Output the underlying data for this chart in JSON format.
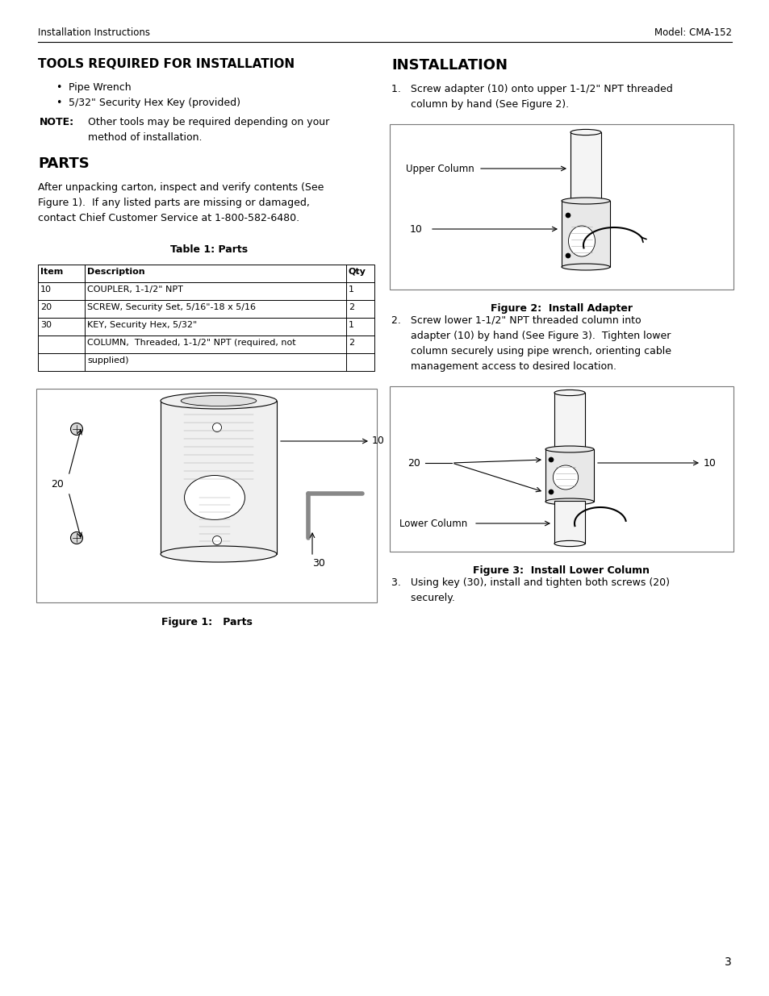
{
  "page_width": 9.54,
  "page_height": 12.35,
  "dpi": 100,
  "bg_color": "#ffffff",
  "header_left": "Installation Instructions",
  "header_right": "Model: CMA-152",
  "header_fontsize": 8.5,
  "section1_title": "TOOLS REQUIRED FOR INSTALLATION",
  "section1_title_fontsize": 11,
  "section1_bullets": [
    "Pipe Wrench",
    "5/32\" Security Hex Key (provided)"
  ],
  "note_bold": "NOTE:",
  "note_rest": "  Other tools may be required depending on your",
  "note_rest2": "method of installation.",
  "section2_title": "PARTS",
  "section2_title_fontsize": 13,
  "section2_para": [
    "After unpacking carton, inspect and verify contents (See",
    "Figure 1).  If any listed parts are missing or damaged,",
    "contact Chief Customer Service at 1-800-582-6480."
  ],
  "table_title": "Table 1: Parts",
  "table_headers": [
    "Item",
    "Description",
    "Qty"
  ],
  "table_rows": [
    [
      "10",
      "COUPLER, 1-1/2\" NPT",
      "1"
    ],
    [
      "20",
      "SCREW, Security Set, 5/16\"-18 x 5/16",
      "2"
    ],
    [
      "30",
      "KEY, Security Hex, 5/32\"",
      "1"
    ],
    [
      "",
      "COLUMN,  Threaded, 1-1/2\" NPT (required, not",
      "2"
    ],
    [
      "",
      "supplied)",
      ""
    ]
  ],
  "fig1_caption": "Figure 1:   Parts",
  "section3_title": "INSTALLATION",
  "section3_title_fontsize": 13,
  "step1_lines": [
    "1.   Screw adapter (10) onto upper 1-1/2\" NPT threaded",
    "      column by hand (See Figure 2)."
  ],
  "fig2_caption": "Figure 2:  Install Adapter",
  "step2_lines": [
    "2.   Screw lower 1-1/2\" NPT threaded column into",
    "      adapter (10) by hand (See Figure 3).  Tighten lower",
    "      column securely using pipe wrench, orienting cable",
    "      management access to desired location."
  ],
  "fig3_caption": "Figure 3:  Install Lower Column",
  "step3_lines": [
    "3.   Using key (30), install and tighten both screws (20)",
    "      securely."
  ],
  "page_num": "3",
  "body_fontsize": 9,
  "caption_fontsize": 9,
  "table_fontsize": 8
}
